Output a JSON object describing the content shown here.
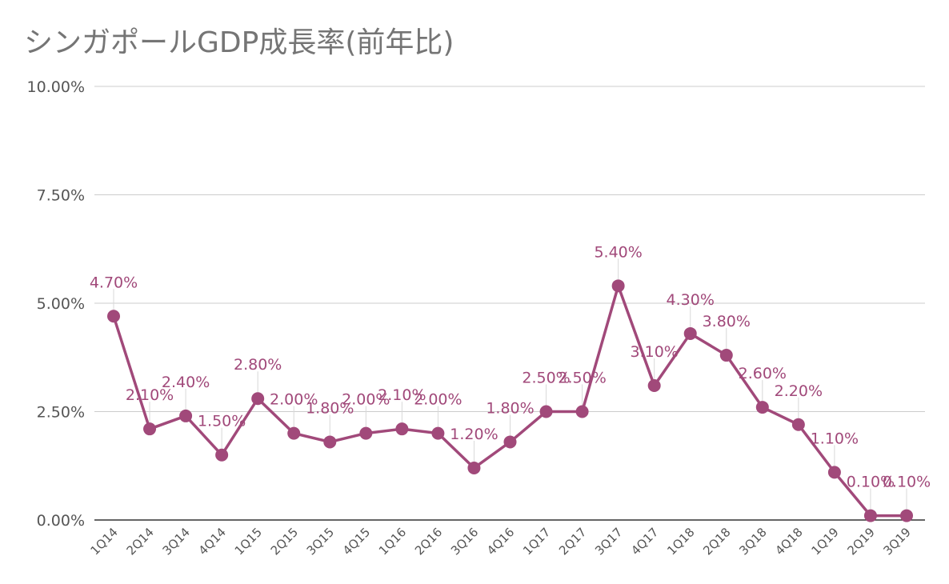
{
  "chart_data": {
    "type": "line",
    "title": "シンガポールGDP成長率(前年比)",
    "categories": [
      "1Q14",
      "2Q14",
      "3Q14",
      "4Q14",
      "1Q15",
      "2Q15",
      "3Q15",
      "4Q15",
      "1Q16",
      "2Q16",
      "3Q16",
      "4Q16",
      "1Q17",
      "2Q17",
      "3Q17",
      "4Q17",
      "1Q18",
      "2Q18",
      "3Q18",
      "4Q18",
      "1Q19",
      "2Q19",
      "3Q19"
    ],
    "series": [
      {
        "values": [
          4.7,
          2.1,
          2.4,
          1.5,
          2.8,
          2.0,
          1.8,
          2.0,
          2.1,
          2.0,
          1.2,
          1.8,
          2.5,
          2.5,
          5.4,
          3.1,
          4.3,
          3.8,
          2.6,
          2.2,
          1.1,
          0.1,
          0.1
        ],
        "data_labels": [
          "4.70%",
          "2.10%",
          "2.40%",
          "1.50%",
          "2.80%",
          "2.00%",
          "1.80%",
          "2.00%",
          "2.10%",
          "2.00%",
          "1.20%",
          "1.80%",
          "2.50%",
          "2.50%",
          "5.40%",
          "3.10%",
          "4.30%",
          "3.80%",
          "2.60%",
          "2.20%",
          "1.10%",
          "0.10%",
          "0.10%"
        ],
        "color": "#a1497a"
      }
    ],
    "yticks": [
      0,
      2.5,
      5,
      7.5,
      10
    ],
    "ytick_labels": [
      "0.00%",
      "2.50%",
      "5.00%",
      "7.50%",
      "10.00%"
    ],
    "ylim": [
      0,
      10
    ],
    "grid": true,
    "xlabel": "",
    "ylabel": ""
  }
}
